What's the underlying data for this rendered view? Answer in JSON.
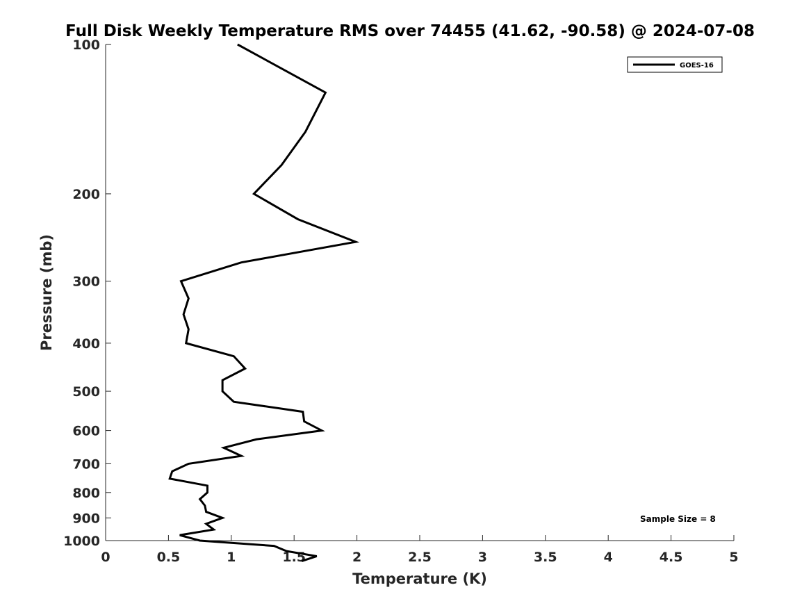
{
  "chart_data": {
    "type": "line",
    "title": "Full Disk Weekly Temperature RMS over 74455 (41.62, -90.58) @ 2024-07-08",
    "xlabel": "Temperature (K)",
    "ylabel": "Pressure (mb)",
    "xlim": [
      0,
      5
    ],
    "ylim": [
      100,
      1000
    ],
    "y_scale": "log",
    "y_direction": "reversed",
    "grid": false,
    "x_ticks": [
      0,
      0.5,
      1,
      1.5,
      2,
      2.5,
      3,
      3.5,
      4,
      4.5,
      5
    ],
    "x_tick_labels": [
      "0",
      "0.5",
      "1",
      "1.5",
      "2",
      "2.5",
      "3",
      "3.5",
      "4",
      "4.5",
      "5"
    ],
    "y_ticks": [
      100,
      200,
      300,
      400,
      500,
      600,
      700,
      800,
      900,
      1000
    ],
    "y_tick_labels": [
      "100",
      "200",
      "300",
      "400",
      "500",
      "600",
      "700",
      "800",
      "900",
      "1000"
    ],
    "legend": {
      "position": "top-right",
      "entries": [
        "GOES-16"
      ]
    },
    "annotation": "Sample Size = 8",
    "series": [
      {
        "name": "GOES-16",
        "color": "#000000",
        "points": [
          [
            1.05,
            100
          ],
          [
            1.75,
            125
          ],
          [
            1.59,
            150
          ],
          [
            1.4,
            175
          ],
          [
            1.18,
            200
          ],
          [
            1.53,
            225
          ],
          [
            1.99,
            250
          ],
          [
            1.08,
            275
          ],
          [
            0.6,
            300
          ],
          [
            0.66,
            325
          ],
          [
            0.62,
            350
          ],
          [
            0.66,
            375
          ],
          [
            0.64,
            400
          ],
          [
            1.02,
            425
          ],
          [
            1.11,
            450
          ],
          [
            0.93,
            475
          ],
          [
            0.93,
            500
          ],
          [
            1.02,
            525
          ],
          [
            1.57,
            550
          ],
          [
            1.58,
            575
          ],
          [
            1.72,
            600
          ],
          [
            1.2,
            625
          ],
          [
            0.94,
            650
          ],
          [
            1.08,
            675
          ],
          [
            0.66,
            700
          ],
          [
            0.53,
            725
          ],
          [
            0.51,
            750
          ],
          [
            0.81,
            775
          ],
          [
            0.81,
            800
          ],
          [
            0.75,
            825
          ],
          [
            0.79,
            850
          ],
          [
            0.8,
            875
          ],
          [
            0.93,
            900
          ],
          [
            0.8,
            925
          ],
          [
            0.86,
            950
          ],
          [
            0.59,
            975
          ],
          [
            0.75,
            1000
          ],
          [
            1.34,
            1025
          ],
          [
            1.44,
            1050
          ],
          [
            1.68,
            1075
          ],
          [
            1.56,
            1100
          ]
        ]
      }
    ]
  }
}
